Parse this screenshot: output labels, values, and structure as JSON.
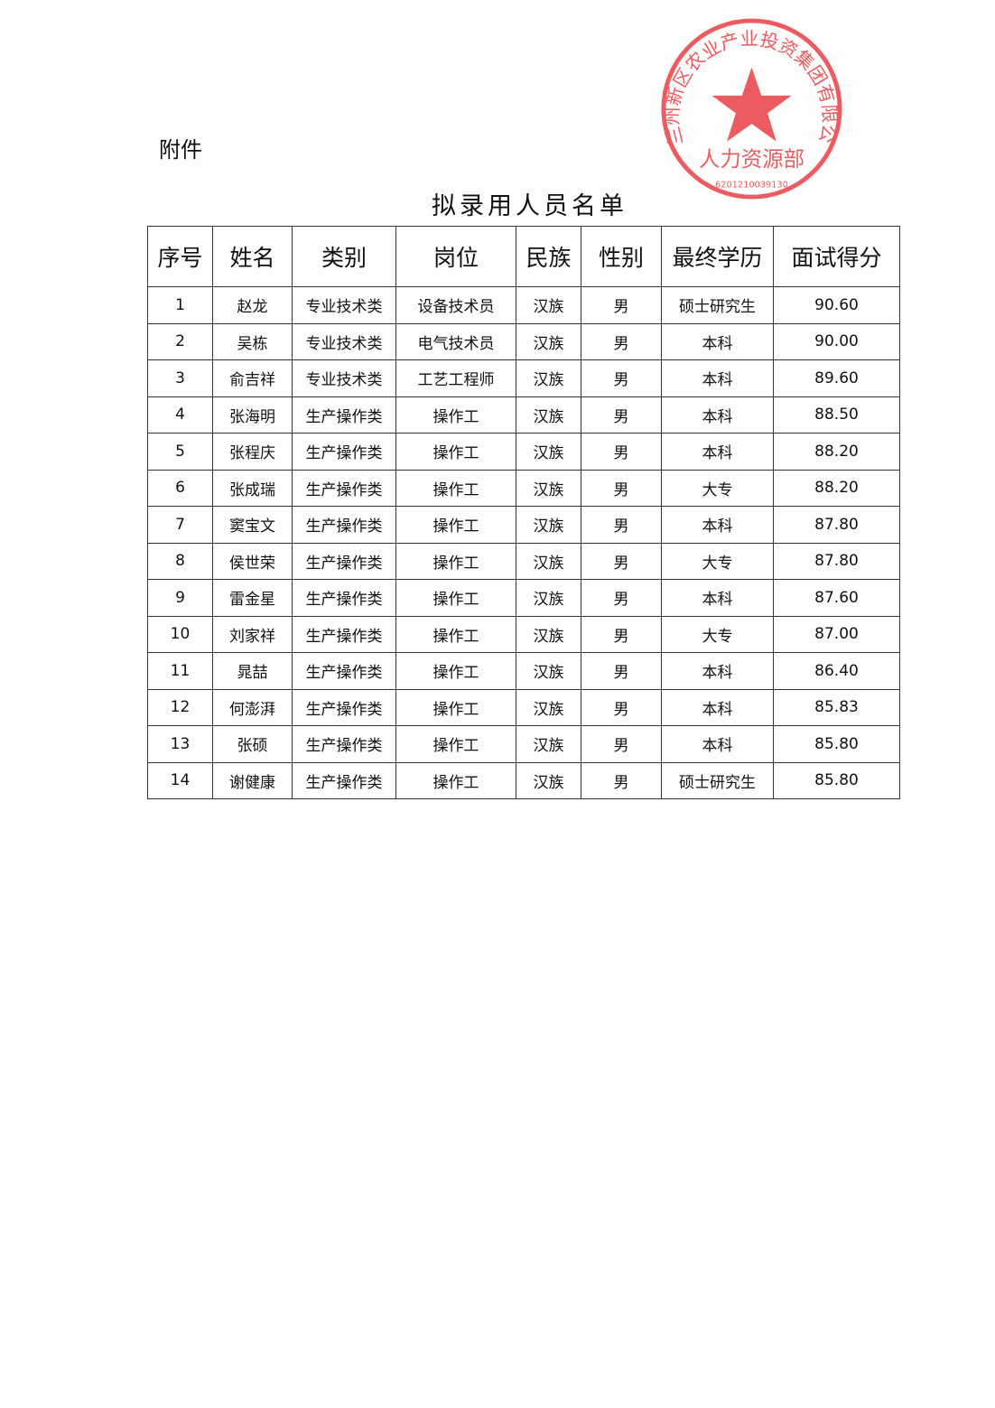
{
  "attachment_label": "附件",
  "title": "拟录用人员名单",
  "stamp": {
    "org": "兰州新区农业产业投资集团有限公司",
    "dept": "人力资源部",
    "code": "6201210039130",
    "color": "#e8383d"
  },
  "table": {
    "headers": [
      "序号",
      "姓名",
      "类别",
      "岗位",
      "民族",
      "性别",
      "最终学历",
      "面试得分"
    ],
    "rows": [
      [
        "1",
        "赵龙",
        "专业技术类",
        "设备技术员",
        "汉族",
        "男",
        "硕士研究生",
        "90.60"
      ],
      [
        "2",
        "吴栋",
        "专业技术类",
        "电气技术员",
        "汉族",
        "男",
        "本科",
        "90.00"
      ],
      [
        "3",
        "俞吉祥",
        "专业技术类",
        "工艺工程师",
        "汉族",
        "男",
        "本科",
        "89.60"
      ],
      [
        "4",
        "张海明",
        "生产操作类",
        "操作工",
        "汉族",
        "男",
        "本科",
        "88.50"
      ],
      [
        "5",
        "张程庆",
        "生产操作类",
        "操作工",
        "汉族",
        "男",
        "本科",
        "88.20"
      ],
      [
        "6",
        "张成瑞",
        "生产操作类",
        "操作工",
        "汉族",
        "男",
        "大专",
        "88.20"
      ],
      [
        "7",
        "窦宝文",
        "生产操作类",
        "操作工",
        "汉族",
        "男",
        "本科",
        "87.80"
      ],
      [
        "8",
        "侯世荣",
        "生产操作类",
        "操作工",
        "汉族",
        "男",
        "大专",
        "87.80"
      ],
      [
        "9",
        "雷金星",
        "生产操作类",
        "操作工",
        "汉族",
        "男",
        "本科",
        "87.60"
      ],
      [
        "10",
        "刘家祥",
        "生产操作类",
        "操作工",
        "汉族",
        "男",
        "大专",
        "87.00"
      ],
      [
        "11",
        "晁喆",
        "生产操作类",
        "操作工",
        "汉族",
        "男",
        "本科",
        "86.40"
      ],
      [
        "12",
        "何澎湃",
        "生产操作类",
        "操作工",
        "汉族",
        "男",
        "本科",
        "85.83"
      ],
      [
        "13",
        "张硕",
        "生产操作类",
        "操作工",
        "汉族",
        "男",
        "本科",
        "85.80"
      ],
      [
        "14",
        "谢健康",
        "生产操作类",
        "操作工",
        "汉族",
        "男",
        "硕士研究生",
        "85.80"
      ]
    ]
  }
}
